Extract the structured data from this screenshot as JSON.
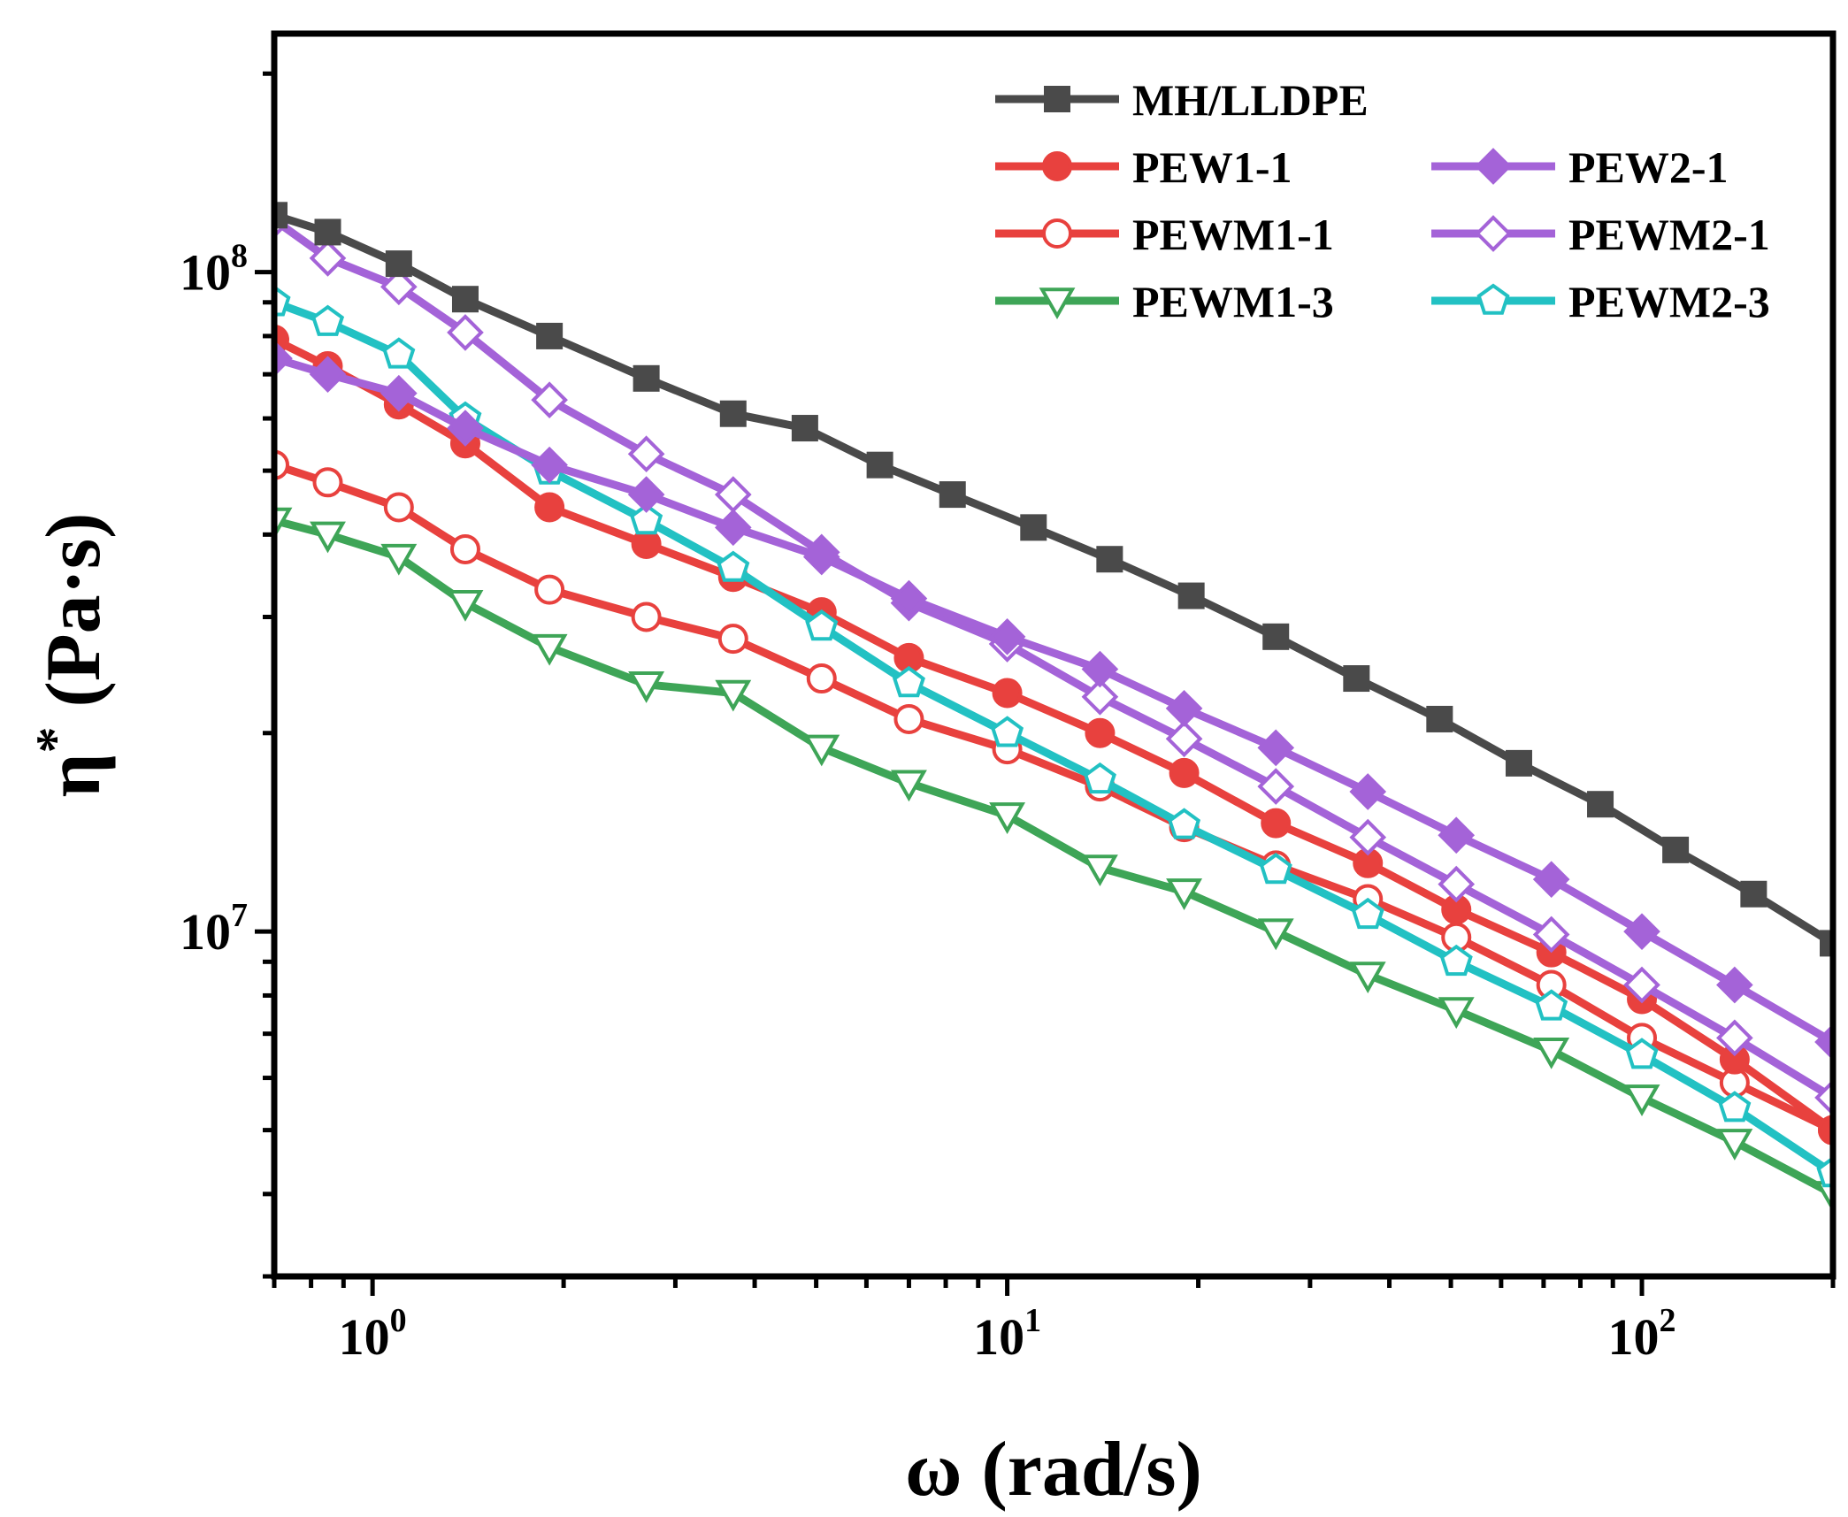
{
  "chart_data": {
    "type": "line",
    "x_scale": "log",
    "y_scale": "log",
    "xlabel": "ω (rad/s)",
    "ylabel": "η* (Pa·s)",
    "ylabel_main": "η",
    "ylabel_sup": "*",
    "ylabel_unit": " (Pa·s)",
    "xlim": [
      0.7,
      200
    ],
    "ylim": [
      3000000,
      230000000
    ],
    "x_ticks": [
      {
        "value": 1,
        "base": "10",
        "exp": "0"
      },
      {
        "value": 10,
        "base": "10",
        "exp": "1"
      },
      {
        "value": 100,
        "base": "10",
        "exp": "2"
      }
    ],
    "y_ticks": [
      {
        "value": 10000000,
        "base": "10",
        "exp": "7"
      },
      {
        "value": 100000000,
        "base": "10",
        "exp": "8"
      }
    ],
    "legend_position": "top-right",
    "x": [
      0.7,
      0.85,
      1.1,
      1.4,
      1.9,
      2.7,
      3.7,
      5.1,
      7.0,
      10.0,
      14.0,
      19.0,
      26.5,
      37.0,
      51.0,
      72.0,
      100.0,
      140.0,
      200.0
    ],
    "series": [
      {
        "name": "MH/LLDPE",
        "color": "#4a4a4a",
        "marker": "square",
        "filled": true,
        "x": [
          0.7,
          0.85,
          1.1,
          1.4,
          1.9,
          2.7,
          3.7,
          4.8,
          6.3,
          8.2,
          11.0,
          14.5,
          19.5,
          26.5,
          35.5,
          48.0,
          64.0,
          86.0,
          113.0,
          150.0,
          200.0
        ],
        "values": [
          122000000,
          115000000,
          103000000,
          91000000,
          80000000,
          69000000,
          61000000,
          58000000,
          51000000,
          46000000,
          41000000,
          36700000,
          32300000,
          28000000,
          24200000,
          21000000,
          18000000,
          15600000,
          13300000,
          11400000,
          9600000
        ]
      },
      {
        "name": "PEW1-1",
        "color": "#e8413e",
        "marker": "circle",
        "filled": true,
        "values": [
          79000000,
          72000000,
          63000000,
          55000000,
          44000000,
          38700000,
          34500000,
          30500000,
          26000000,
          23000000,
          20000000,
          17400000,
          14600000,
          12700000,
          10800000,
          9300000,
          7900000,
          6400000,
          5000000
        ]
      },
      {
        "name": "PEW2-1",
        "color": "#a463d8",
        "marker": "diamond",
        "filled": true,
        "values": [
          74000000,
          70000000,
          65500000,
          58000000,
          51000000,
          46000000,
          41000000,
          37000000,
          32000000,
          28000000,
          25000000,
          21800000,
          19000000,
          16300000,
          14000000,
          12000000,
          10000000,
          8300000,
          6800000
        ]
      },
      {
        "name": "PEWM1-1",
        "color": "#e8413e",
        "marker": "circle",
        "filled": false,
        "values": [
          51000000,
          48000000,
          44000000,
          38000000,
          33000000,
          30000000,
          27800000,
          24200000,
          21000000,
          18900000,
          16600000,
          14400000,
          12600000,
          11200000,
          9800000,
          8300000,
          6900000,
          5900000,
          5000000
        ]
      },
      {
        "name": "PEWM2-1",
        "color": "#a463d8",
        "marker": "diamond",
        "filled": false,
        "values": [
          120000000,
          105000000,
          95000000,
          81000000,
          64000000,
          53000000,
          46000000,
          37600000,
          31500000,
          27300000,
          22700000,
          19600000,
          16600000,
          13900000,
          11800000,
          9900000,
          8300000,
          6900000,
          5600000
        ]
      },
      {
        "name": "PEWM1-3",
        "color": "#3ea557",
        "marker": "triangle-down",
        "filled": false,
        "values": [
          42000000,
          40000000,
          37000000,
          31500000,
          27000000,
          23700000,
          23000000,
          19000000,
          16800000,
          15000000,
          12500000,
          11500000,
          10000000,
          8600000,
          7600000,
          6600000,
          5600000,
          4800000,
          4000000
        ]
      },
      {
        "name": "PEWM2-3",
        "color": "#22c1c3",
        "marker": "pentagon",
        "filled": false,
        "values": [
          90000000,
          84000000,
          75000000,
          60000000,
          50000000,
          42000000,
          35600000,
          29000000,
          23800000,
          20000000,
          17000000,
          14500000,
          12400000,
          10600000,
          9000000,
          7700000,
          6500000,
          5400000,
          4300000
        ]
      }
    ],
    "legend": [
      {
        "series": "MH/LLDPE",
        "col": 0,
        "row": 0
      },
      {
        "series": "PEW1-1",
        "col": 0,
        "row": 1
      },
      {
        "series": "PEWM1-1",
        "col": 0,
        "row": 2
      },
      {
        "series": "PEWM1-3",
        "col": 0,
        "row": 3
      },
      {
        "series": "PEW2-1",
        "col": 1,
        "row": 1
      },
      {
        "series": "PEWM2-1",
        "col": 1,
        "row": 2
      },
      {
        "series": "PEWM2-3",
        "col": 1,
        "row": 3
      }
    ]
  }
}
